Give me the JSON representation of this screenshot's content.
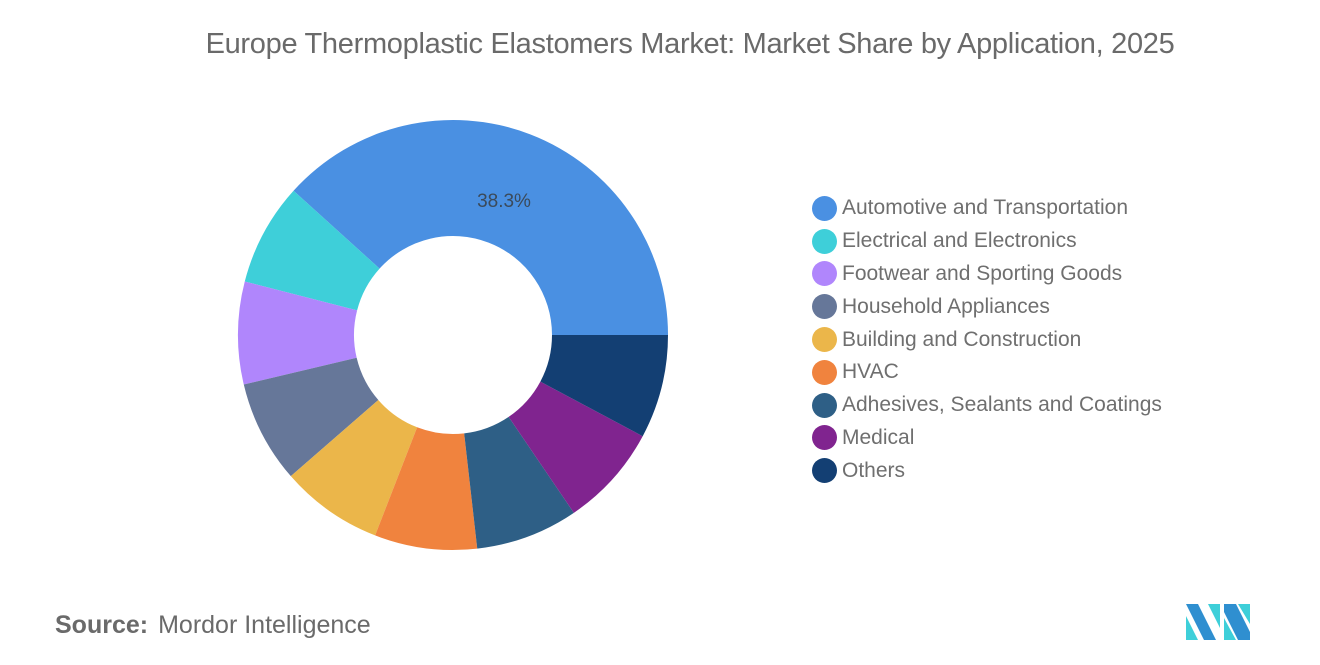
{
  "title": "Europe Thermoplastic Elastomers Market: Market Share by Application, 2025",
  "source": {
    "key": "Source:",
    "value": "Mordor Intelligence"
  },
  "chart_data": {
    "type": "pie",
    "variant": "donut",
    "title": "Europe Thermoplastic Elastomers Market: Market Share by Application, 2025",
    "categories": [
      "Automotive and Transportation",
      "Electrical and Electronics",
      "Footwear and Sporting Goods",
      "Household Appliances",
      "Building and Construction",
      "HVAC",
      "Adhesives, Sealants and Coatings",
      "Medical",
      "Others"
    ],
    "values": [
      38.3,
      7.7,
      7.7,
      7.7,
      7.7,
      7.7,
      7.7,
      7.7,
      7.8
    ],
    "colors": [
      "#4a90e2",
      "#3ecfd9",
      "#b086fc",
      "#667799",
      "#ebb64a",
      "#f0833e",
      "#2e5f86",
      "#80248f",
      "#133f73"
    ],
    "data_labels": [
      {
        "category": "Automotive and Transportation",
        "text": "38.3%"
      }
    ],
    "legend_position": "right",
    "start_angle": "3 o'clock, counterclockwise"
  },
  "legend": [
    {
      "label": "Automotive and Transportation",
      "color": "#4a90e2"
    },
    {
      "label": "Electrical and Electronics",
      "color": "#3ecfd9"
    },
    {
      "label": "Footwear and Sporting Goods",
      "color": "#b086fc"
    },
    {
      "label": "Household Appliances",
      "color": "#667799"
    },
    {
      "label": "Building and Construction",
      "color": "#ebb64a"
    },
    {
      "label": "HVAC",
      "color": "#f0833e"
    },
    {
      "label": "Adhesives, Sealants and Coatings",
      "color": "#2e5f86"
    },
    {
      "label": "Medical",
      "color": "#80248f"
    },
    {
      "label": "Others",
      "color": "#133f73"
    }
  ]
}
